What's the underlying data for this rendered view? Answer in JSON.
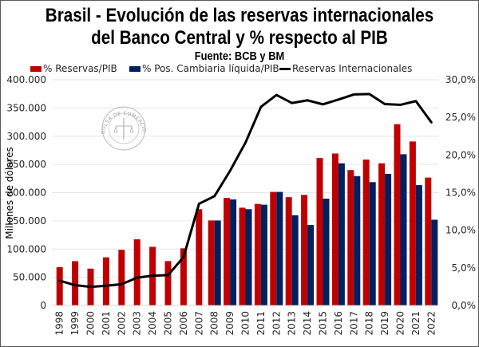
{
  "chart_data": {
    "type": "bar",
    "title": "Brasil - Evolución de las reservas internacionales",
    "title_line2": "del Banco Central y % respecto al PIB",
    "subtitle": "Fuente: BCB y BM",
    "ylabel": "Millones de dólares",
    "xlabel": "",
    "y_left": {
      "range": [
        0,
        400000
      ],
      "ticks": [
        "0",
        "50.000",
        "100.000",
        "150.000",
        "200.000",
        "250.000",
        "300.000",
        "350.000",
        "400.000"
      ]
    },
    "y_right": {
      "range": [
        0,
        30
      ],
      "ticks": [
        "0,0%",
        "5,0%",
        "10,0%",
        "15,0%",
        "20,0%",
        "25,0%",
        "30,0%"
      ]
    },
    "grid": true,
    "legend_position": "top",
    "categories": [
      "1998",
      "1999",
      "2000",
      "2001",
      "2002",
      "2003",
      "2004",
      "2005",
      "2006",
      "2007",
      "2008",
      "2009",
      "2010",
      "2011",
      "2012",
      "2013",
      "2014",
      "2015",
      "2016",
      "2017",
      "2018",
      "2019",
      "2020",
      "2021",
      "2022"
    ],
    "series": [
      {
        "name": "% Reservas/PIB",
        "type": "bar",
        "axis": "right",
        "color": "#C00000",
        "values": [
          5.1,
          5.9,
          4.9,
          6.4,
          7.4,
          8.8,
          7.8,
          5.9,
          7.6,
          12.8,
          11.3,
          14.3,
          13.0,
          13.5,
          15.1,
          14.4,
          14.7,
          19.6,
          20.2,
          18.0,
          19.4,
          18.9,
          24.1,
          21.8,
          17.0
        ]
      },
      {
        "name": "% Pos. Cambiaria líquida/PIB",
        "type": "bar",
        "axis": "right",
        "color": "#002060",
        "values": [
          null,
          null,
          null,
          null,
          null,
          null,
          null,
          null,
          null,
          null,
          11.3,
          14.1,
          12.8,
          13.4,
          15.1,
          12.0,
          10.7,
          14.2,
          18.9,
          17.2,
          16.4,
          17.5,
          20.1,
          16.0,
          11.4
        ]
      },
      {
        "name": "Reservas Internacionales",
        "type": "line",
        "axis": "left",
        "color": "#000000",
        "values": [
          44000,
          36000,
          33000,
          35000,
          37800,
          49300,
          52900,
          53800,
          85800,
          180300,
          193800,
          238500,
          288600,
          352000,
          373100,
          358800,
          363600,
          356500,
          365000,
          374000,
          374700,
          356900,
          355600,
          362200,
          324700
        ]
      }
    ],
    "watermark": "BOLSA DE COMERCIO DE ROSARIO"
  }
}
